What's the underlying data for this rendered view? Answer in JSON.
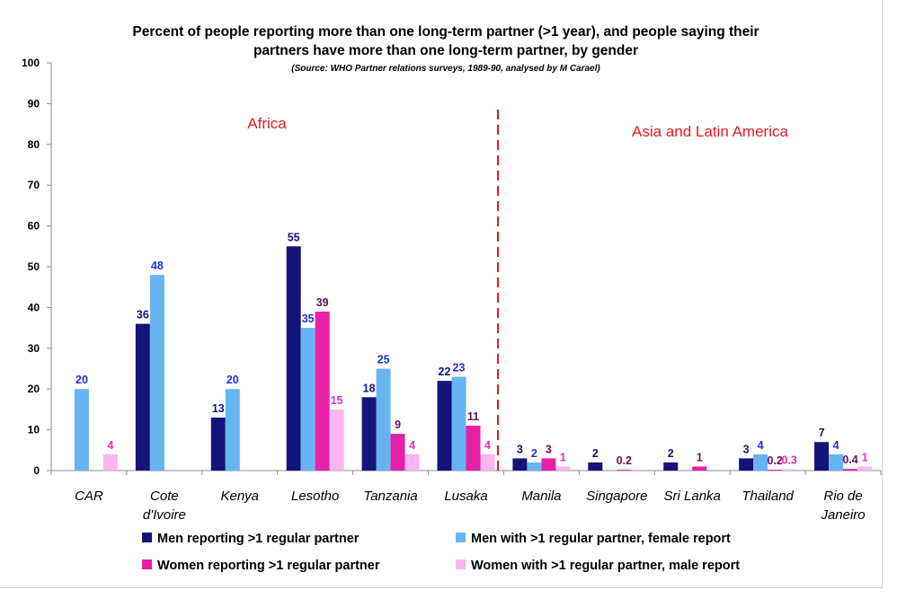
{
  "chart_data": {
    "type": "bar",
    "title_line1": "Percent of people reporting more than one long-term partner (>1 year), and people saying their",
    "title_line2": "partners have more than one long-term partner, by gender",
    "subtitle": "(Source: WHO Partner relations surveys, 1989-90, analysed by M Carael)",
    "ylim": [
      0,
      100
    ],
    "yticks": [
      0,
      10,
      20,
      30,
      40,
      50,
      60,
      70,
      80,
      90,
      100
    ],
    "categories": [
      [
        "CAR"
      ],
      [
        "Cote",
        "d'Ivoire"
      ],
      [
        "Kenya"
      ],
      [
        "Lesotho"
      ],
      [
        "Tanzania"
      ],
      [
        "Lusaka"
      ],
      [
        "Manila"
      ],
      [
        "Singapore"
      ],
      [
        "Sri Lanka"
      ],
      [
        "Thailand"
      ],
      [
        "Rio de",
        "Janeiro"
      ]
    ],
    "series": [
      {
        "name": "Men reporting >1 regular partner",
        "color": "#14147a",
        "label_color": "#14147a",
        "values": [
          null,
          36,
          13,
          55,
          18,
          22,
          3,
          2,
          2,
          3,
          7
        ],
        "labels": [
          null,
          "36",
          "13",
          "55",
          "18",
          "22",
          "3",
          "2",
          "2",
          "3",
          "7"
        ]
      },
      {
        "name": "Men with >1 regular partner, female report",
        "color": "#66b5f2",
        "label_color": "#2030d8",
        "values": [
          20,
          48,
          20,
          35,
          25,
          23,
          2,
          null,
          null,
          4,
          4
        ],
        "labels": [
          "20",
          "48",
          "20",
          "35",
          "25",
          "23",
          "2",
          null,
          null,
          "4",
          "4"
        ]
      },
      {
        "name": "Women reporting >1 regular partner",
        "color": "#e81fa8",
        "label_color": "#6e0f55",
        "values": [
          null,
          null,
          null,
          39,
          9,
          11,
          3,
          0.2,
          1,
          0.2,
          0.4
        ],
        "labels": [
          null,
          null,
          null,
          "39",
          "9",
          "11",
          "3",
          "0.2",
          "1",
          "0.2",
          "0.4"
        ]
      },
      {
        "name": "Women with >1 regular partner, male report",
        "color": "#f9b6f0",
        "label_color": "#e030b8",
        "values": [
          4,
          null,
          null,
          15,
          4,
          4,
          1,
          null,
          null,
          0.3,
          1
        ],
        "labels": [
          "4",
          null,
          null,
          "15",
          "4",
          "4",
          "1",
          null,
          null,
          "0.3",
          "1"
        ]
      }
    ],
    "annotations": {
      "region_left": "Africa",
      "region_right": "Asia and Latin America",
      "region_color": "#e8191f",
      "divider_color": "#e8191f"
    },
    "legend_position": "bottom",
    "grid": false
  }
}
